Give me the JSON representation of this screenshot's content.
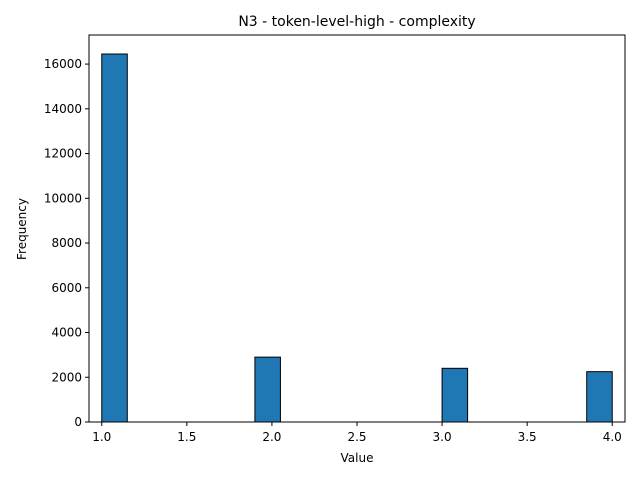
{
  "chart_data": {
    "type": "bar",
    "title": "N3 - token-level-high - complexity",
    "xlabel": "Value",
    "ylabel": "Frequency",
    "xlim": [
      0.925,
      4.075
    ],
    "ylim": [
      0,
      17300
    ],
    "xticks": [
      1.0,
      1.5,
      2.0,
      2.5,
      3.0,
      3.5,
      4.0
    ],
    "xtick_labels": [
      "1.0",
      "1.5",
      "2.0",
      "2.5",
      "3.0",
      "3.5",
      "4.0"
    ],
    "yticks": [
      0,
      2000,
      4000,
      6000,
      8000,
      10000,
      12000,
      14000,
      16000
    ],
    "ytick_labels": [
      "0",
      "2000",
      "4000",
      "6000",
      "8000",
      "10000",
      "12000",
      "14000",
      "16000"
    ],
    "bin_width": 0.15,
    "bins": [
      {
        "x_start": 1.0,
        "value": 16450
      },
      {
        "x_start": 1.9,
        "value": 2900
      },
      {
        "x_start": 3.0,
        "value": 2400
      },
      {
        "x_start": 3.85,
        "value": 2250
      }
    ],
    "colors": {
      "bar_fill": "#1f77b4",
      "bar_edge": "#000000"
    },
    "grid": false,
    "legend": "none"
  }
}
